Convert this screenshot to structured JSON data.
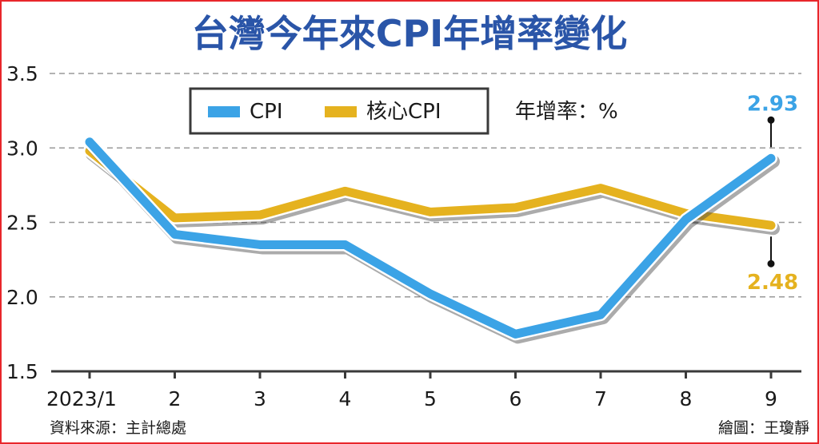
{
  "chart_data": {
    "type": "line",
    "title": "台灣今年來CPI年增率變化",
    "unit_label": "年增率：%",
    "categories": [
      "2023/1",
      "2",
      "3",
      "4",
      "5",
      "6",
      "7",
      "8",
      "9"
    ],
    "series": [
      {
        "name": "CPI",
        "values": [
          3.04,
          2.42,
          2.35,
          2.35,
          2.02,
          1.75,
          1.88,
          2.52,
          2.93
        ],
        "color": "#3ba3e6"
      },
      {
        "name": "核心CPI",
        "values": [
          2.98,
          2.53,
          2.55,
          2.71,
          2.57,
          2.6,
          2.73,
          2.56,
          2.48
        ],
        "color": "#e5b21f"
      }
    ],
    "ylim": [
      1.5,
      3.5
    ],
    "yticks": [
      "3.5",
      "3.0",
      "2.5",
      "2.0",
      "1.5"
    ],
    "grid": true,
    "legend": "top-center",
    "annotations": [
      {
        "text": "2.93",
        "series": "CPI",
        "category": "9",
        "color": "#3ba3e6"
      },
      {
        "text": "2.48",
        "series": "核心CPI",
        "category": "9",
        "color": "#e5b21f"
      }
    ]
  },
  "footer": {
    "source": "資料來源：主計總處",
    "credit": "繪圖：王瓊靜"
  }
}
